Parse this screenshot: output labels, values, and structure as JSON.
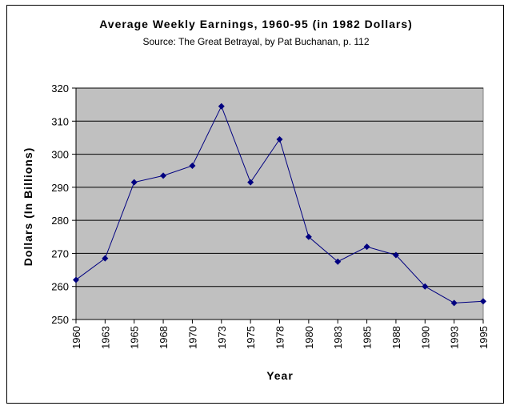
{
  "chart_data": {
    "type": "line",
    "title": "Average Weekly Earnings, 1960-95 (in 1982 Dollars)",
    "subtitle": "Source: The Great Betrayal, by Pat Buchanan, p. 112",
    "xlabel": "Year",
    "ylabel": "Dollars (In Billions)",
    "categories": [
      "1960",
      "1963",
      "1965",
      "1968",
      "1970",
      "1973",
      "1975",
      "1978",
      "1980",
      "1983",
      "1985",
      "1988",
      "1990",
      "1993",
      "1995"
    ],
    "series": [
      {
        "values": [
          262,
          268.5,
          291.5,
          293.5,
          296.5,
          314.5,
          291.5,
          304.5,
          275,
          267.5,
          272,
          269.5,
          260,
          255,
          255.5
        ]
      }
    ],
    "ylim": [
      250,
      320
    ],
    "yticks": [
      250,
      260,
      270,
      280,
      290,
      300,
      310,
      320
    ],
    "grid": true,
    "legend": "none",
    "colors": {
      "plot_background": "#c0c0c0",
      "line": "#000080",
      "marker": "#000080",
      "gridline": "#000000"
    }
  }
}
